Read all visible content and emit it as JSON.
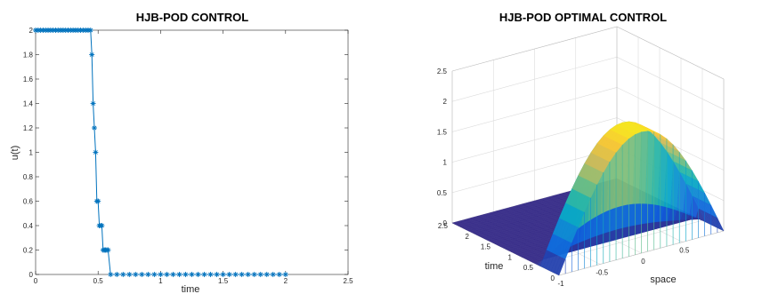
{
  "chart_data": [
    {
      "type": "line",
      "title": "HJB-POD CONTROL",
      "xlabel": "time",
      "ylabel": "u(t)",
      "xlim": [
        0,
        2.5
      ],
      "ylim": [
        0,
        2
      ],
      "xticks": [
        "0",
        "0.5",
        "1",
        "1.5",
        "2",
        "2.5"
      ],
      "yticks": [
        "0",
        "0.2",
        "0.4",
        "0.6",
        "0.8",
        "1",
        "1.2",
        "1.4",
        "1.6",
        "1.8",
        "2"
      ],
      "marker": "asterisk",
      "color": "#0072BD",
      "series": [
        {
          "x": [
            0,
            0.02,
            0.04,
            0.06,
            0.08,
            0.1,
            0.12,
            0.14,
            0.16,
            0.18,
            0.2,
            0.22,
            0.24,
            0.26,
            0.28,
            0.3,
            0.32,
            0.34,
            0.36,
            0.38,
            0.4,
            0.42,
            0.44,
            0.45,
            0.46,
            0.47,
            0.48,
            0.49,
            0.5,
            0.51,
            0.52,
            0.53,
            0.54,
            0.55,
            0.56,
            0.57,
            0.58,
            0.6,
            0.65,
            0.7,
            0.75,
            0.8,
            0.85,
            0.9,
            0.95,
            1.0,
            1.05,
            1.1,
            1.15,
            1.2,
            1.25,
            1.3,
            1.35,
            1.4,
            1.45,
            1.5,
            1.55,
            1.6,
            1.65,
            1.7,
            1.75,
            1.8,
            1.85,
            1.9,
            1.95,
            2.0
          ],
          "values": [
            2,
            2,
            2,
            2,
            2,
            2,
            2,
            2,
            2,
            2,
            2,
            2,
            2,
            2,
            2,
            2,
            2,
            2,
            2,
            2,
            2,
            2,
            2,
            1.8,
            1.4,
            1.2,
            1.0,
            0.6,
            0.6,
            0.4,
            0.4,
            0.4,
            0.2,
            0.2,
            0.2,
            0.2,
            0.2,
            0,
            0,
            0,
            0,
            0,
            0,
            0,
            0,
            0,
            0,
            0,
            0,
            0,
            0,
            0,
            0,
            0,
            0,
            0,
            0,
            0,
            0,
            0,
            0,
            0,
            0,
            0,
            0,
            0
          ]
        }
      ]
    },
    {
      "type": "surface",
      "title": "HJB-POD OPTIMAL CONTROL",
      "xlabel": "space",
      "ylabel": "time",
      "xlim": [
        -1,
        1
      ],
      "ylim": [
        0,
        2.5
      ],
      "zlim": [
        0,
        2.5
      ],
      "xticks": [
        "-1",
        "-0.5",
        "0",
        "0.5"
      ],
      "yticks": [
        "0",
        "0.5",
        "1",
        "1.5",
        "2",
        "2.5"
      ],
      "zticks": [
        "0",
        "0.5",
        "1",
        "1.5",
        "2",
        "2.5"
      ],
      "colormap": [
        "#352a87",
        "#0f5cdd",
        "#1481d6",
        "#06a4ca",
        "#2eb7a4",
        "#87bf77",
        "#d1bb59",
        "#fec832",
        "#f9fb0e"
      ],
      "control_profile": "u(t) above; surface = u(t) * sin(pi*(x+1)/2)",
      "grid": true
    }
  ]
}
